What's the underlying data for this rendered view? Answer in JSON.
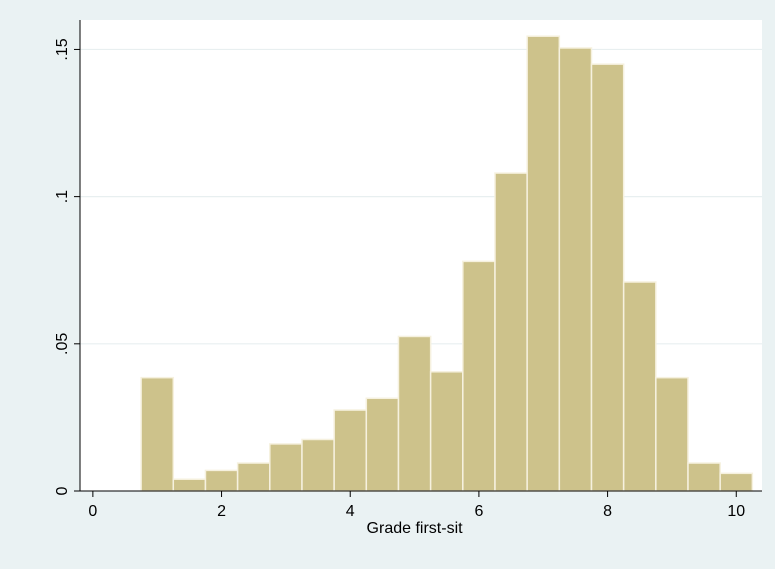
{
  "chart_data": {
    "type": "bar",
    "subtype": "histogram",
    "title": "",
    "xlabel": "Grade first-sit",
    "ylabel": "",
    "xlim": [
      -0.2,
      10.4
    ],
    "ylim": [
      0,
      0.16
    ],
    "x_ticks": [
      0,
      2,
      4,
      6,
      8,
      10
    ],
    "x_tick_labels": [
      "0",
      "2",
      "4",
      "6",
      "8",
      "10"
    ],
    "y_ticks": [
      0,
      0.05,
      0.1,
      0.15
    ],
    "y_tick_labels": [
      "0",
      ".05",
      ".1",
      ".15"
    ],
    "grid": true,
    "legend": "none",
    "bins": [
      {
        "start": 0.75,
        "end": 1.25,
        "value": 0.0385
      },
      {
        "start": 1.25,
        "end": 1.75,
        "value": 0.004
      },
      {
        "start": 1.75,
        "end": 2.25,
        "value": 0.007
      },
      {
        "start": 2.25,
        "end": 2.75,
        "value": 0.0095
      },
      {
        "start": 2.75,
        "end": 3.25,
        "value": 0.016
      },
      {
        "start": 3.25,
        "end": 3.75,
        "value": 0.0175
      },
      {
        "start": 3.75,
        "end": 4.25,
        "value": 0.0275
      },
      {
        "start": 4.25,
        "end": 4.75,
        "value": 0.0315
      },
      {
        "start": 4.75,
        "end": 5.25,
        "value": 0.0525
      },
      {
        "start": 5.25,
        "end": 5.75,
        "value": 0.0405
      },
      {
        "start": 5.75,
        "end": 6.25,
        "value": 0.078
      },
      {
        "start": 6.25,
        "end": 6.75,
        "value": 0.108
      },
      {
        "start": 6.75,
        "end": 7.25,
        "value": 0.1545
      },
      {
        "start": 7.25,
        "end": 7.75,
        "value": 0.1505
      },
      {
        "start": 7.75,
        "end": 8.25,
        "value": 0.145
      },
      {
        "start": 8.25,
        "end": 8.75,
        "value": 0.071
      },
      {
        "start": 8.75,
        "end": 9.25,
        "value": 0.0385
      },
      {
        "start": 9.25,
        "end": 9.75,
        "value": 0.0095
      },
      {
        "start": 9.75,
        "end": 10.25,
        "value": 0.006
      }
    ],
    "colors": {
      "background": "#eaf2f3",
      "plot_background": "#ffffff",
      "bar_fill": "#cdc28b",
      "bar_stroke": "#f6f1df",
      "grid": "#e8eff0",
      "axis": "#000000"
    }
  }
}
